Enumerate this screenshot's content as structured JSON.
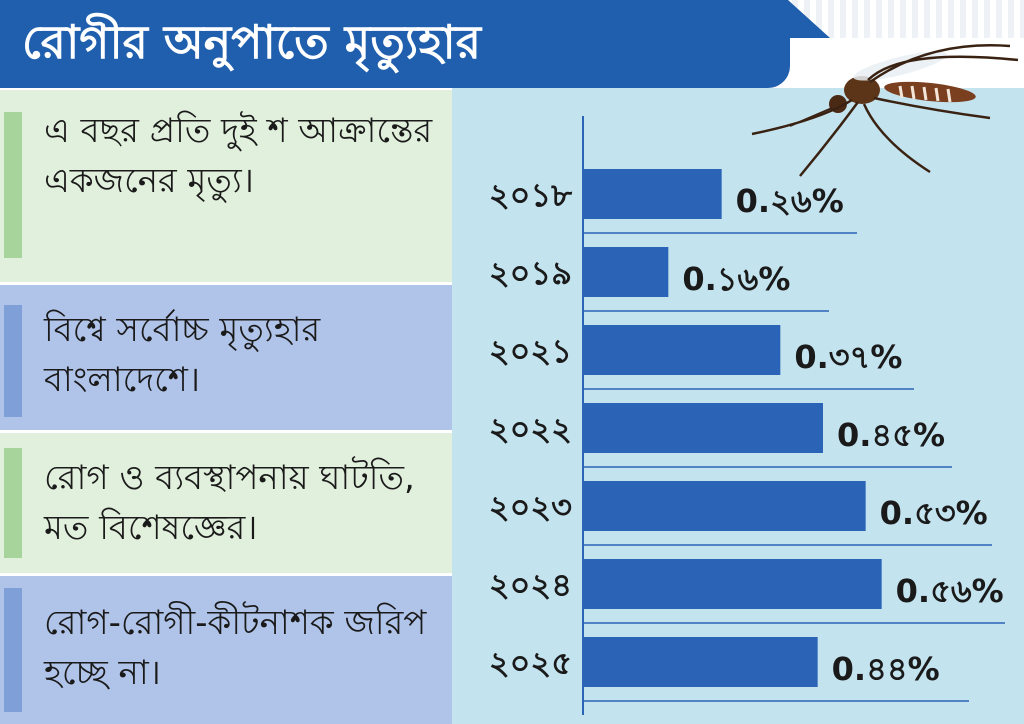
{
  "title": "রোগীর অনুপাতে মৃত্যুহার",
  "notes": [
    "এ বছর প্রতি দুই শ আক্রান্তের একজনের মৃত্যু।",
    "বিশ্বে সর্বোচ্চ মৃত্যুহার বাংলাদেশে।",
    "রোগ ও ব্যবস্থাপনায় ঘাটতি, মত বিশেষজ্ঞের।",
    "রোগ-রোগী-কীটনাশক জরিপ হচ্ছে না।"
  ],
  "chart_data": {
    "type": "bar",
    "orientation": "horizontal",
    "categories": [
      "২০১৮",
      "২০১৯",
      "২০২১",
      "২০২২",
      "২০২৩",
      "২০২৪",
      "২০২৫"
    ],
    "values": [
      0.26,
      0.16,
      0.37,
      0.45,
      0.53,
      0.56,
      0.44
    ],
    "value_labels": [
      "0.২৬%",
      "0.১৬%",
      "0.৩৭%",
      "0.৪৫%",
      "0.৫৩%",
      "0.৫৬%",
      "0.৪৪%"
    ],
    "bar_color": "#2b63b6",
    "xlim": [
      0,
      0.6
    ]
  },
  "colors": {
    "title_band": "#1f5fae",
    "chart_background": "#c3e3ef",
    "note_green": "#e1f0dc",
    "note_blue": "#b0c3e8"
  },
  "illustration": "mosquito-icon"
}
